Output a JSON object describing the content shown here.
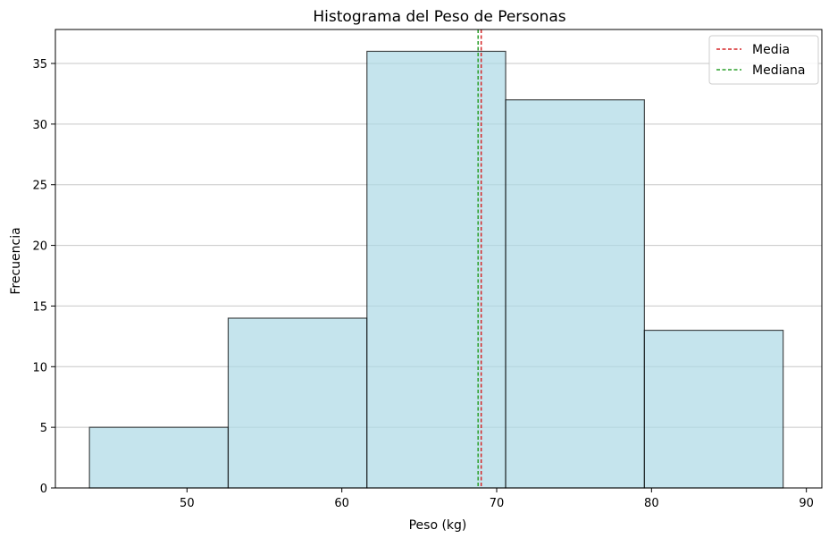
{
  "chart_data": {
    "type": "bar",
    "title": "Histograma del Peso de Personas",
    "xlabel": "Peso (kg)",
    "ylabel": "Frecuencia",
    "bin_edges": [
      43.7,
      52.66,
      61.62,
      70.58,
      79.54,
      88.5
    ],
    "counts": [
      5,
      14,
      36,
      32,
      13
    ],
    "xlim": [
      41.5,
      91.0
    ],
    "ylim": [
      0,
      37.8
    ],
    "xticks": [
      50,
      60,
      70,
      80,
      90
    ],
    "yticks": [
      0,
      5,
      10,
      15,
      20,
      25,
      30,
      35
    ],
    "grid": "horizontal",
    "bar_color": "#add8e6",
    "bar_edge_color": "#000000",
    "lines": [
      {
        "name": "Media",
        "x": 69.0,
        "color": "#d62728",
        "style": "dashed"
      },
      {
        "name": "Mediana",
        "x": 68.8,
        "color": "#2ca02c",
        "style": "dashed"
      }
    ],
    "legend_position": "top-right"
  }
}
